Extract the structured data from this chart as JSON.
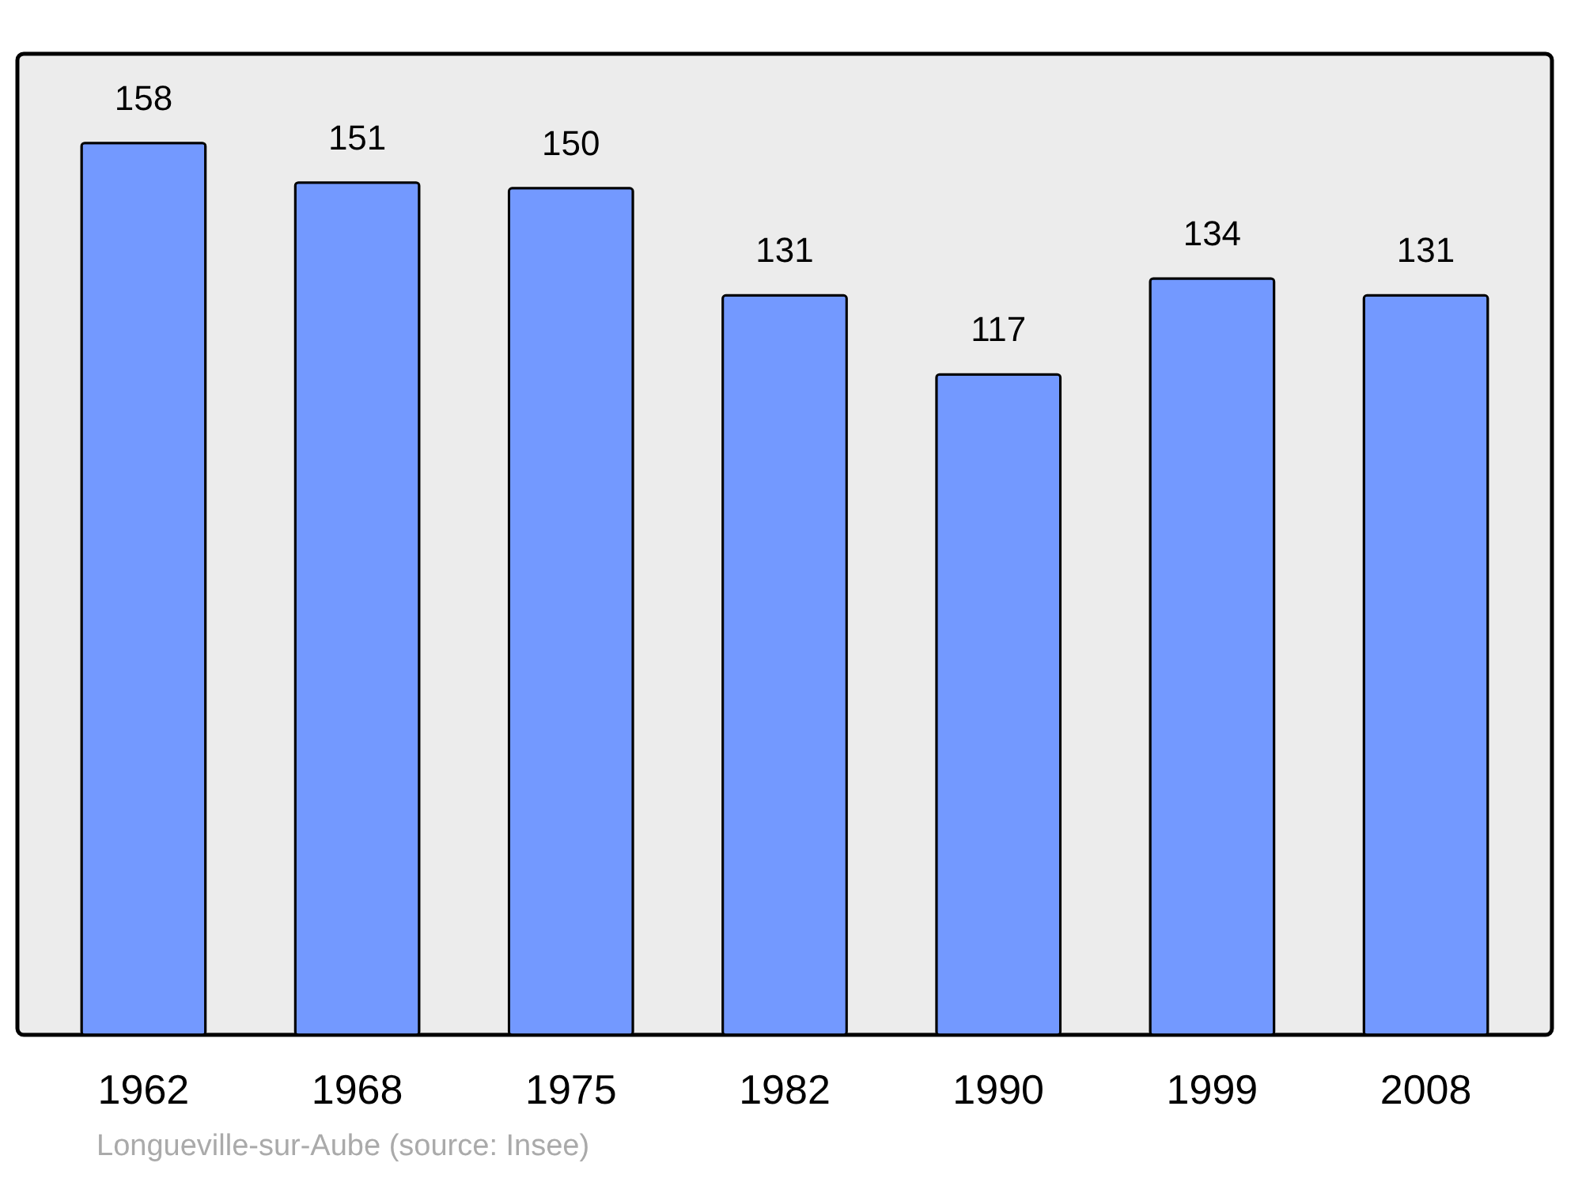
{
  "chart_data": {
    "type": "bar",
    "categories": [
      "1962",
      "1968",
      "1975",
      "1982",
      "1990",
      "1999",
      "2008"
    ],
    "values": [
      158,
      151,
      150,
      131,
      117,
      134,
      131
    ],
    "color": "#7399ff",
    "data_labels": true,
    "tick_labels": "x",
    "annotations": [
      "Longueville-sur-Aube    (source: Insee)"
    ]
  }
}
